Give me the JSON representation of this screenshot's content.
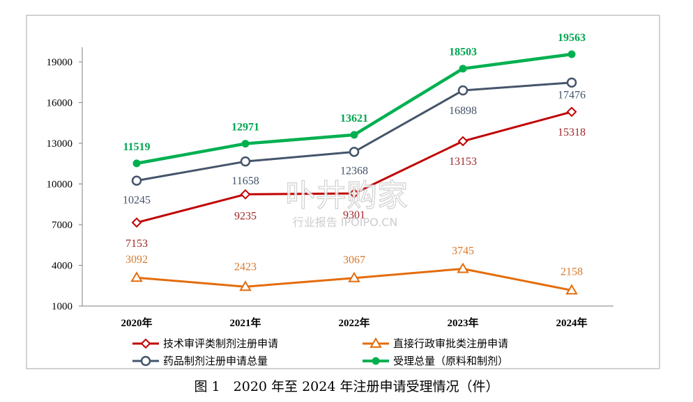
{
  "chart_data": {
    "type": "line",
    "categories": [
      "2020年",
      "2021年",
      "2022年",
      "2023年",
      "2024年"
    ],
    "ylim": [
      1000,
      21000
    ],
    "yticks": [
      1000,
      4000,
      7000,
      10000,
      13000,
      16000,
      19000
    ],
    "grid": false,
    "legend_position": "bottom",
    "series": [
      {
        "name": "技术审评类制剂注册申请",
        "values": [
          7153,
          9235,
          9301,
          13153,
          15318
        ],
        "color": "#c00000",
        "marker": "diamond",
        "label_color": "#a0282b"
      },
      {
        "name": "直接行政审批类注册申请",
        "values": [
          3092,
          2423,
          3067,
          3745,
          2158
        ],
        "color": "#e36c0a",
        "marker": "triangle",
        "label_color": "#d9792b"
      },
      {
        "name": "药品制剂注册申请总量",
        "values": [
          10245,
          11658,
          12368,
          16898,
          17476
        ],
        "color": "#44546a",
        "marker": "circle",
        "label_color": "#44546a"
      },
      {
        "name": "受理总量（原料和制剂）",
        "values": [
          11519,
          12971,
          13621,
          18503,
          19563
        ],
        "color": "#00b050",
        "marker": "dot",
        "label_color": "#00a651"
      }
    ],
    "caption": "图 1　2020 年至 2024 年注册申请受理情况（件）"
  },
  "watermark": {
    "main": "卟井购家",
    "sub": "行业报告 IPOIPO.CN"
  }
}
